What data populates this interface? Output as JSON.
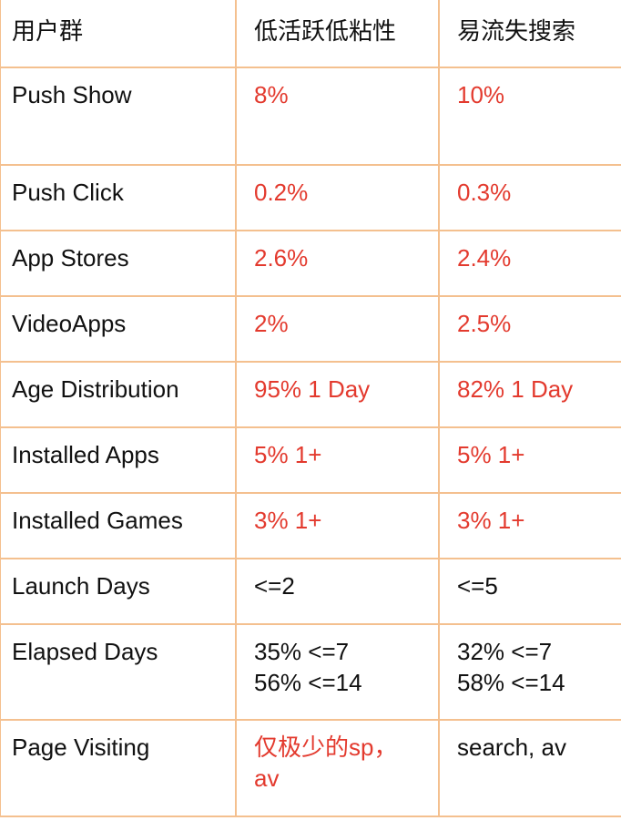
{
  "table": {
    "headers": [
      "用户群",
      "低活跃低粘性",
      "易流失搜索"
    ],
    "rows": [
      {
        "label": "Push Show",
        "a": "8%",
        "b": "10%"
      },
      {
        "label": "Push Click",
        "a": "0.2%",
        "b": "0.3%"
      },
      {
        "label": "App Stores",
        "a": "2.6%",
        "b": "2.4%"
      },
      {
        "label": "VideoApps",
        "a": "2%",
        "b": "2.5%"
      },
      {
        "label": "Age Distribution",
        "a": "95% 1 Day",
        "b": "82% 1 Day"
      },
      {
        "label": "Installed Apps",
        "a": "5% 1+",
        "b": "5% 1+"
      },
      {
        "label": "Installed Games",
        "a": "3% 1+",
        "b": "3% 1+"
      },
      {
        "label": "Launch Days",
        "a": "<=2",
        "b": "<=5"
      },
      {
        "label": "Elapsed Days",
        "a": "35% <=7\n56% <=14",
        "b": "32% <=7\n58% <=14"
      },
      {
        "label": "Page Visiting",
        "a": "仅极少的sp，\nav",
        "b": "search, av"
      }
    ]
  },
  "colors": {
    "border": "#f4c08f",
    "highlight_text": "#e33a2e",
    "text": "#111111"
  }
}
